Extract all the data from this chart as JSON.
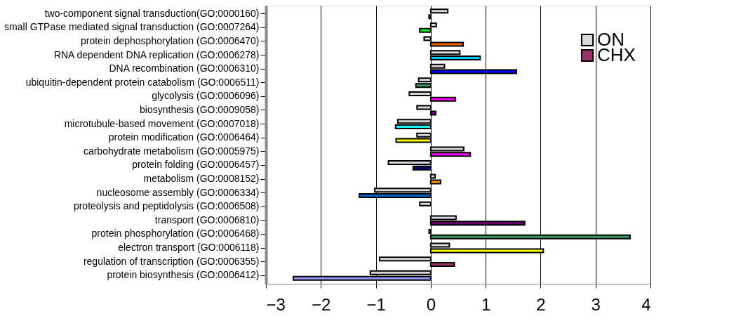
{
  "chart_data": {
    "type": "bar",
    "orientation": "horizontal",
    "categories": [
      "two-component signal transduction(GO:0000160)",
      "small GTPase mediated signal transduction (GO:0007264)",
      "protein dephosphorylation (GO:0006470)",
      "RNA dependent DNA replication (GO:0006278)",
      "DNA recombination (GO:0006310)",
      "ubiquitin-dependent protein catabolism (GO:0006511)",
      "glycolysis (GO:0006096)",
      "biosynthesis (GO:0009058)",
      "microtubule-based movement (GO:0007018)",
      "protein modification (GO:0006464)",
      "carbohydrate metabolism (GO:0005975)",
      "protein folding (GO:0006457)",
      "metabolism (GO:0008152)",
      "nucleosome assembly (GO:0006334)",
      "proteolysis and peptidolysis (GO:0006508)",
      "transport (GO:0006810)",
      "protein phosphorylation (GO:0006468)",
      "electron transport (GO:0006118)",
      "regulation of transcription (GO:0006355)",
      "protein biosynthesis (GO:0006412)"
    ],
    "series": [
      {
        "name": "ON",
        "color": "#d9d9d9",
        "values": [
          0.31,
          0.1,
          -0.12,
          0.53,
          0.25,
          -0.22,
          -0.39,
          -0.25,
          -0.6,
          -0.25,
          0.6,
          -0.77,
          0.08,
          -1.02,
          -0.2,
          0.46,
          -0.03,
          0.34,
          -0.93,
          -1.1
        ]
      },
      {
        "name": "CHX",
        "color": "#993366",
        "colors": [
          "#333333",
          "#00ff00",
          "#ff6600",
          "#00ccff",
          "#0000ff",
          "#339966",
          "#ff00ff",
          "#800080",
          "#00ffff",
          "#ffff00",
          "#ff00ff",
          "#000080",
          "#ff9900",
          "#0066cc",
          "#cccccc",
          "#660066",
          "#339966",
          "#ffff00",
          "#993366",
          "#9999ff"
        ],
        "values": [
          -0.03,
          -0.2,
          0.59,
          0.9,
          1.56,
          -0.27,
          0.45,
          0.09,
          -0.64,
          -0.63,
          0.72,
          -0.32,
          0.18,
          -1.3,
          null,
          1.71,
          3.63,
          2.05,
          0.43,
          -2.5
        ]
      }
    ],
    "xlim": [
      -3,
      4
    ],
    "xticks": [
      -3,
      -2,
      -1,
      0,
      1,
      2,
      3,
      4
    ],
    "grid": "x",
    "legend": "top right"
  }
}
